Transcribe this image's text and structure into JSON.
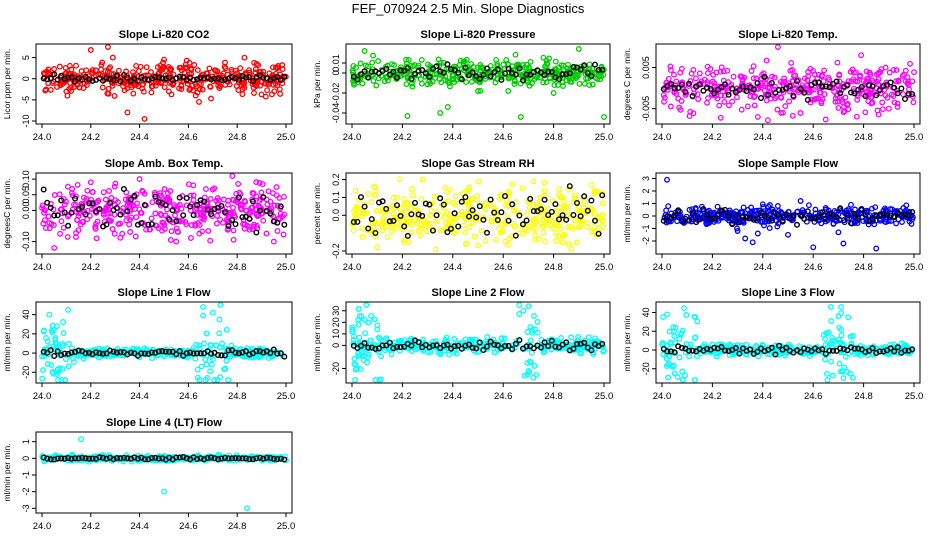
{
  "figure": {
    "title": "FEF_070924  2.5 Min. Slope Diagnostics"
  },
  "colors": {
    "black_series": "#000000"
  },
  "chart_data": [
    {
      "type": "scatter",
      "title": "Slope Li-820 CO2",
      "ylabel": "Licor ppm per min.",
      "xlim": [
        24.0,
        25.0
      ],
      "ylim": [
        -10,
        7.5
      ],
      "xticks": [
        "24.0",
        "24.2",
        "24.4",
        "24.6",
        "24.8",
        "25.0"
      ],
      "yticks": [
        "-10",
        "-5",
        "0",
        "5"
      ],
      "color": "#ff0000",
      "black_spread": 0.4,
      "colored_spread": 1.8,
      "noise_profile": "flat",
      "outliers": [
        [
          24.1,
          -3
        ],
        [
          24.2,
          6.8
        ],
        [
          24.27,
          7.5
        ],
        [
          24.29,
          5
        ],
        [
          24.42,
          -9.5
        ],
        [
          24.35,
          -8
        ],
        [
          24.5,
          4.5
        ],
        [
          24.52,
          -3
        ],
        [
          24.63,
          -4
        ],
        [
          24.88,
          3.5
        ],
        [
          24.73,
          -1.8
        ]
      ]
    },
    {
      "type": "scatter",
      "title": "Slope Li-820 Pressure",
      "ylabel": "kPa per min.",
      "xlim": [
        24.0,
        25.0
      ],
      "ylim": [
        -0.048,
        0.026
      ],
      "xticks": [
        "24.0",
        "24.2",
        "24.4",
        "24.6",
        "24.8",
        "25.0"
      ],
      "yticks": [
        "-0.04",
        "-0.02",
        "0",
        "0.01"
      ],
      "color": "#00cc00",
      "black_spread": 0.004,
      "colored_spread": 0.006,
      "noise_profile": "flat",
      "outliers": [
        [
          24.22,
          -0.043
        ],
        [
          24.35,
          -0.04
        ],
        [
          24.38,
          -0.034
        ],
        [
          24.5,
          -0.018
        ],
        [
          24.62,
          -0.018
        ],
        [
          24.67,
          -0.044
        ],
        [
          24.8,
          -0.02
        ],
        [
          25.0,
          -0.044
        ],
        [
          24.05,
          0.022
        ],
        [
          24.9,
          0.024
        ]
      ]
    },
    {
      "type": "scatter",
      "title": "Slope Li-820 Temp.",
      "ylabel": "degrees C per min.",
      "xlim": [
        24.0,
        25.0
      ],
      "ylim": [
        -0.008,
        0.01
      ],
      "xticks": [
        "24.0",
        "24.2",
        "24.4",
        "24.6",
        "24.8",
        "25.0"
      ],
      "yticks": [
        "-0.005",
        "0.005"
      ],
      "color": "#ff00ff",
      "black_spread": 0.0012,
      "colored_spread": 0.0028,
      "noise_profile": "flat",
      "outliers": [
        [
          24.38,
          -0.007
        ],
        [
          24.42,
          -0.0078
        ],
        [
          24.46,
          0.01
        ],
        [
          24.48,
          -0.006
        ],
        [
          24.79,
          0.008
        ],
        [
          24.9,
          -0.005
        ]
      ]
    },
    {
      "type": "scatter",
      "title": "Slope Amb. Box Temp.",
      "ylabel": "degreesC per min.",
      "xlim": [
        24.0,
        25.0
      ],
      "ylim": [
        -0.13,
        0.11
      ],
      "xticks": [
        "24.0",
        "24.2",
        "24.4",
        "24.6",
        "24.8",
        "25.0"
      ],
      "yticks": [
        "-0.10",
        "0.00",
        "0.05",
        "0.10"
      ],
      "color": "#ff00ff",
      "black_spread": 0.03,
      "colored_spread": 0.04,
      "noise_profile": "flat",
      "outliers": [
        [
          24.05,
          -0.12
        ],
        [
          24.2,
          0.09
        ],
        [
          24.4,
          0.1
        ],
        [
          24.55,
          -0.1
        ],
        [
          24.62,
          0.08
        ],
        [
          24.78,
          0.11
        ],
        [
          24.95,
          -0.1
        ]
      ]
    },
    {
      "type": "scatter",
      "title": "Slope Gas Stream RH",
      "ylabel": "percent per min.",
      "xlim": [
        24.0,
        25.0
      ],
      "ylim": [
        -0.2,
        0.22
      ],
      "xticks": [
        "24.0",
        "24.2",
        "24.4",
        "24.6",
        "24.8",
        "25.0"
      ],
      "yticks": [
        "-0.2",
        "0.0",
        "0.1",
        "0.2"
      ],
      "color": "#ffff00",
      "black_spread": 0.07,
      "colored_spread": 0.08,
      "noise_profile": "flat",
      "outliers": [
        [
          24.1,
          -0.18
        ],
        [
          24.28,
          0.2
        ],
        [
          24.5,
          -0.17
        ],
        [
          24.72,
          0.19
        ],
        [
          24.87,
          -0.19
        ],
        [
          24.95,
          0.17
        ]
      ]
    },
    {
      "type": "scatter",
      "title": "Slope Sample Flow",
      "ylabel": "ml/min per min.",
      "xlim": [
        24.0,
        25.0
      ],
      "ylim": [
        -2.8,
        3.2
      ],
      "xticks": [
        "24.0",
        "24.2",
        "24.4",
        "24.6",
        "24.8",
        "25.0"
      ],
      "yticks": [
        "-2",
        "-1",
        "0",
        "1",
        "2",
        "3"
      ],
      "color": "#0000ff",
      "black_spread": 0.25,
      "colored_spread": 0.35,
      "noise_profile": "flat",
      "outliers": [
        [
          24.02,
          2.9
        ],
        [
          24.3,
          -1.2
        ],
        [
          24.33,
          -1.8
        ],
        [
          24.36,
          -2.1
        ],
        [
          24.38,
          -1.4
        ],
        [
          24.5,
          -1.5
        ],
        [
          24.55,
          1.2
        ],
        [
          24.6,
          -2.5
        ],
        [
          24.7,
          -1.3
        ],
        [
          24.72,
          -2.2
        ],
        [
          24.75,
          0.9
        ],
        [
          24.85,
          -2.6
        ]
      ]
    },
    {
      "type": "scatter",
      "title": "Slope Line 1 Flow",
      "ylabel": "ml/min per min.",
      "xlim": [
        24.0,
        25.0
      ],
      "ylim": [
        -28,
        50
      ],
      "xticks": [
        "24.0",
        "24.2",
        "24.4",
        "24.6",
        "24.8",
        "25.0"
      ],
      "yticks": [
        "-20",
        "0",
        "20",
        "40"
      ],
      "color": "#00ffff",
      "black_spread": 1.5,
      "colored_spread": 2.2,
      "noise_profile": "bursts",
      "bursts": [
        [
          24.0,
          24.14,
          18
        ],
        [
          24.62,
          24.78,
          18
        ]
      ],
      "outliers": [
        [
          24.66,
          48
        ],
        [
          24.7,
          42
        ],
        [
          24.73,
          -25
        ],
        [
          24.03,
          40
        ],
        [
          24.06,
          -22
        ]
      ]
    },
    {
      "type": "scatter",
      "title": "Slope Line 2 Flow",
      "ylabel": "ml/min per min.",
      "xlim": [
        24.0,
        25.0
      ],
      "ylim": [
        -30,
        35
      ],
      "xticks": [
        "24.0",
        "24.2",
        "24.4",
        "24.6",
        "24.8",
        "25.0"
      ],
      "yticks": [
        "-20",
        "0",
        "10",
        "20",
        "30"
      ],
      "color": "#00ffff",
      "black_spread": 2.0,
      "colored_spread": 3.0,
      "noise_profile": "bursts",
      "bursts": [
        [
          24.0,
          24.12,
          15
        ],
        [
          24.66,
          24.74,
          20
        ]
      ],
      "outliers": [
        [
          24.7,
          34
        ],
        [
          24.72,
          -28
        ],
        [
          24.02,
          -20
        ],
        [
          24.05,
          22
        ],
        [
          24.68,
          30
        ],
        [
          24.7,
          -22
        ]
      ]
    },
    {
      "type": "scatter",
      "title": "Slope Line 3 Flow",
      "ylabel": "ml/min per min.",
      "xlim": [
        24.0,
        25.0
      ],
      "ylim": [
        -32,
        48
      ],
      "xticks": [
        "24.0",
        "24.2",
        "24.4",
        "24.6",
        "24.8",
        "25.0"
      ],
      "yticks": [
        "-20",
        "0",
        "20",
        "40"
      ],
      "color": "#00ffff",
      "black_spread": 2.0,
      "colored_spread": 2.8,
      "noise_profile": "bursts",
      "bursts": [
        [
          24.0,
          24.14,
          16
        ],
        [
          24.64,
          24.76,
          18
        ]
      ],
      "outliers": [
        [
          24.67,
          46
        ],
        [
          24.72,
          -30
        ],
        [
          24.02,
          38
        ],
        [
          24.05,
          -25
        ]
      ]
    },
    {
      "type": "scatter",
      "title": "Slope Line 4 (LT) Flow",
      "ylabel": "ml/min per min.",
      "xlim": [
        24.0,
        25.0
      ],
      "ylim": [
        -3.1,
        1.4
      ],
      "xticks": [
        "24.0",
        "24.2",
        "24.4",
        "24.6",
        "24.8",
        "25.0"
      ],
      "yticks": [
        "-3",
        "-2",
        "-1",
        "0",
        "1"
      ],
      "color": "#00ffff",
      "black_spread": 0.04,
      "colored_spread": 0.08,
      "noise_profile": "flat",
      "outliers": [
        [
          24.16,
          1.15
        ],
        [
          24.5,
          -2.0
        ],
        [
          24.84,
          -3.0
        ]
      ]
    }
  ]
}
